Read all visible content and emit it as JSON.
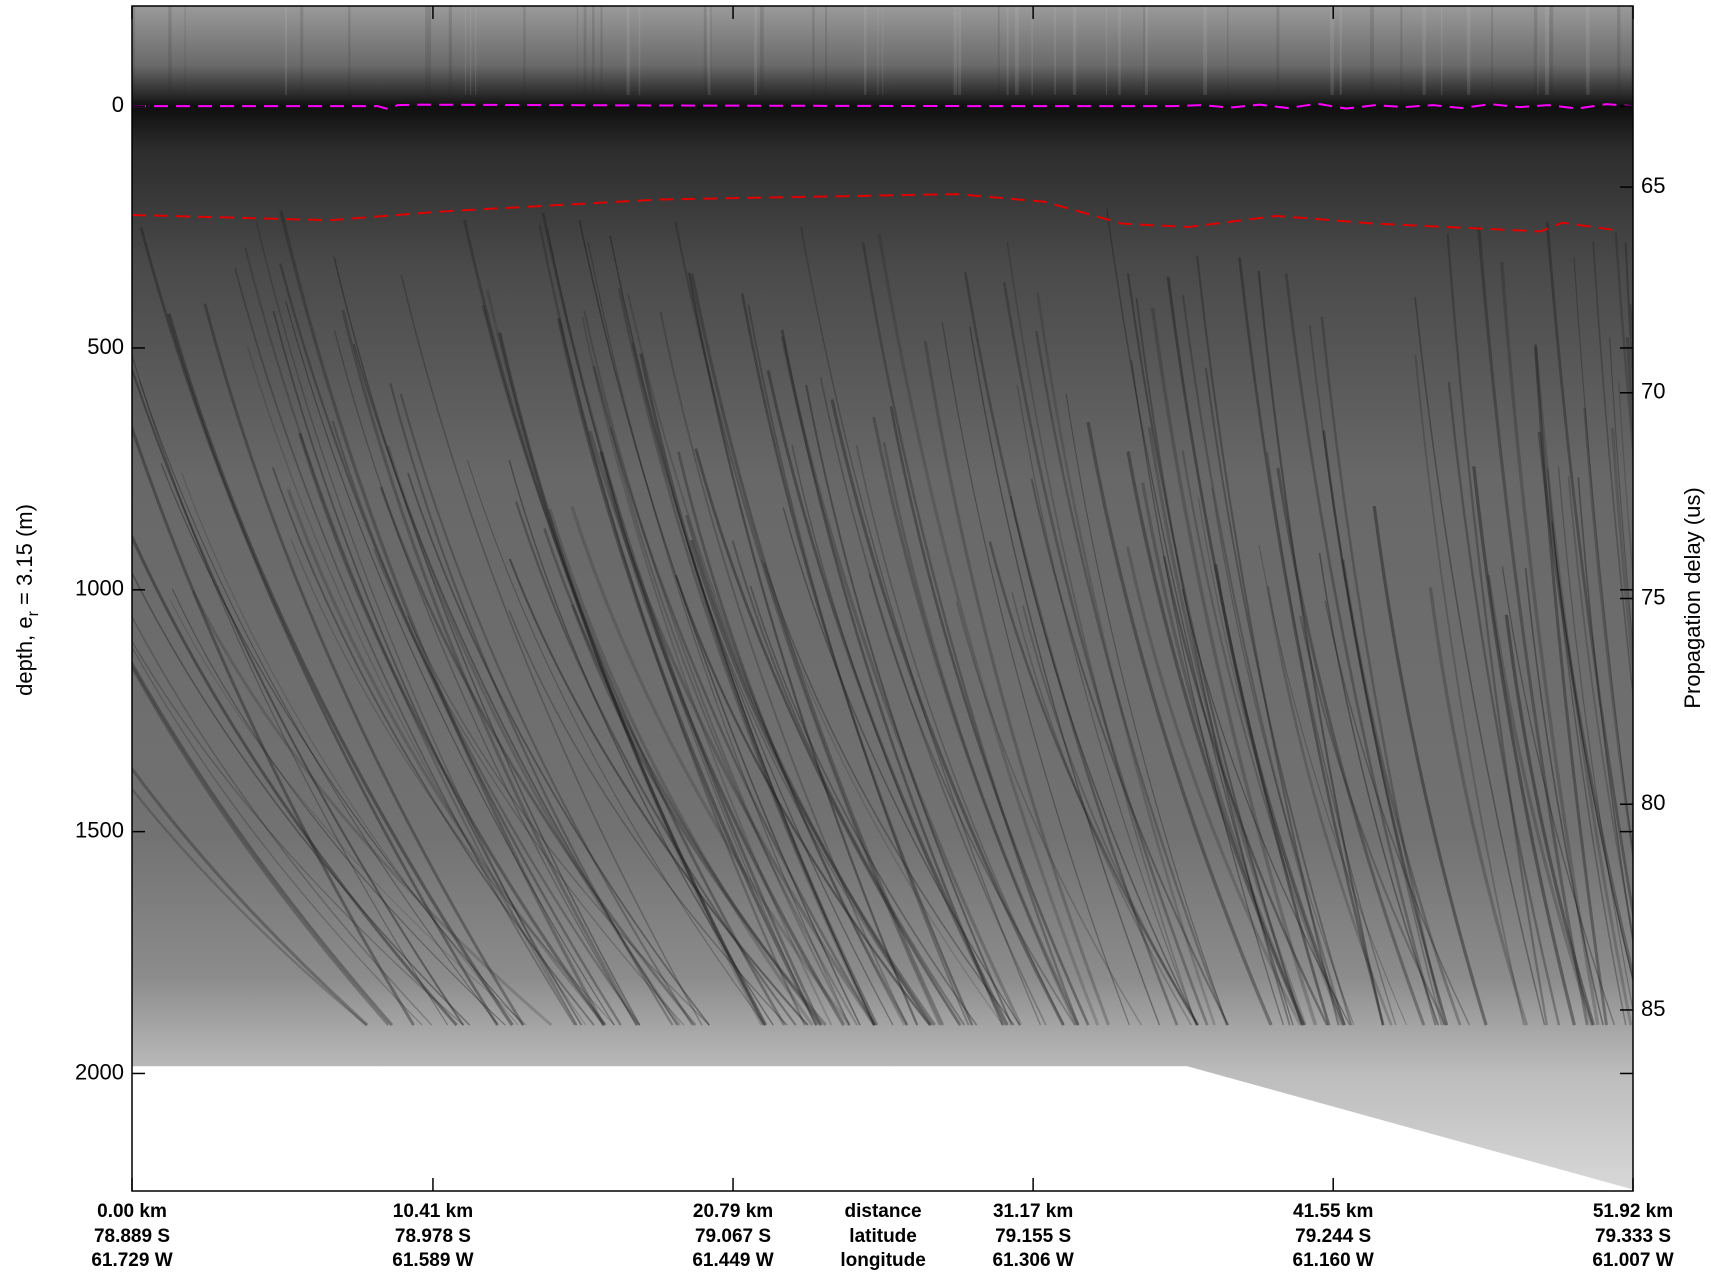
{
  "chart_data": {
    "type": "radargram",
    "ylabel": [
      "depth, e",
      "r",
      " = 3.15 (m)"
    ],
    "y2label": "Propagation delay (us)",
    "xlim": [
      0,
      51.92
    ],
    "xticks": [
      {
        "value": 0,
        "label": "0.00 km"
      },
      {
        "value": 10.41,
        "label": "10.41 km"
      },
      {
        "value": 20.79,
        "label": "20.79 km"
      },
      {
        "value": 31.17,
        "label": "31.17 km"
      },
      {
        "value": 41.55,
        "label": "41.55 km"
      },
      {
        "value": 51.92,
        "label": "51.92 km"
      }
    ],
    "latitude_labels": [
      "78.889 S",
      "78.978 S",
      "79.067 S",
      "79.155 S",
      "79.244 S",
      "79.333 S"
    ],
    "longitude_labels": [
      "61.729 W",
      "61.589 W",
      "61.449 W",
      "61.306 W",
      "61.160 W",
      "61.007 W"
    ],
    "row_labels": [
      "distance",
      "latitude",
      "longitude"
    ],
    "ylim": [
      -207,
      2243
    ],
    "yticks": [
      0,
      500,
      1000,
      1500,
      2000
    ],
    "y2lim": [
      60.6,
      89.4
    ],
    "y2ticks": [
      65,
      70,
      75,
      80,
      85
    ],
    "series": [
      {
        "color": "#ff00ff",
        "x": [
          0,
          5,
          8.5,
          8.8,
          9.2,
          10,
          20,
          30,
          36,
          37,
          38,
          39,
          40,
          41,
          42,
          43,
          44,
          45,
          46,
          47,
          48,
          49,
          50,
          51,
          51.92
        ],
        "values": [
          0,
          0,
          0,
          5,
          -2,
          -3,
          -1,
          0,
          0,
          -2,
          3,
          -3,
          4,
          -5,
          5,
          -2,
          2,
          -2,
          4,
          -4,
          2,
          -2,
          5,
          -4,
          0
        ]
      },
      {
        "color": "#e00000",
        "x": [
          0,
          6.85,
          10.66,
          18.27,
          28.55,
          31.59,
          34.26,
          36.54,
          39.59,
          43.01,
          48.72,
          49.48,
          51.39
        ],
        "values": [
          225,
          236,
          218,
          193,
          182,
          198,
          243,
          250,
          227,
          243,
          259,
          241,
          257
        ]
      }
    ],
    "data_limit": {
      "x": [
        0,
        36.5,
        51.92
      ],
      "values": [
        1985,
        1985,
        2240
      ]
    }
  }
}
